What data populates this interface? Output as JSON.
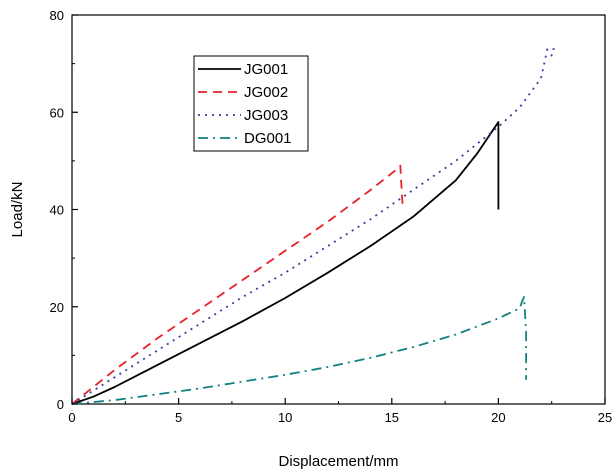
{
  "chart_data": {
    "type": "line",
    "title": "",
    "xlabel": "Displacement/mm",
    "ylabel": "Load/kN",
    "xlim": [
      0,
      25
    ],
    "ylim": [
      0,
      80
    ],
    "xticks": [
      "0",
      "5",
      "10",
      "15",
      "20",
      "25"
    ],
    "yticks": [
      "0",
      "20",
      "40",
      "60",
      "80"
    ],
    "grid": false,
    "legend": "top-left",
    "series": [
      {
        "name": "JG001",
        "color": "#000000",
        "dash": "solid",
        "x": [
          0,
          1,
          2,
          4,
          6,
          8,
          10,
          12,
          14,
          16,
          18,
          19,
          20,
          20
        ],
        "y": [
          0,
          1.5,
          3.5,
          8,
          12.5,
          17,
          21.8,
          27,
          32.5,
          38.5,
          46,
          51.5,
          58,
          40
        ]
      },
      {
        "name": "JG002",
        "color": "#e8202a",
        "dash": "dashed",
        "x": [
          0,
          2,
          4,
          6,
          8,
          10,
          12,
          14,
          15.3,
          15.4,
          15.5
        ],
        "y": [
          0,
          7,
          13.5,
          19.5,
          25.5,
          31.5,
          37.5,
          44,
          48.5,
          49,
          41
        ]
      },
      {
        "name": "JG003",
        "color": "#3a3f9b",
        "dash": "dotted",
        "x": [
          0,
          2,
          4,
          6,
          8,
          10,
          12,
          14,
          16,
          18,
          20,
          21,
          22,
          22.3,
          22.6,
          22.4
        ],
        "y": [
          0,
          5.5,
          11,
          16.5,
          22,
          27,
          32.5,
          38,
          44,
          50,
          57,
          61,
          67,
          73,
          73,
          70.5
        ]
      },
      {
        "name": "DG001",
        "color": "#118080",
        "dash": "dashdot",
        "x": [
          0,
          2,
          4,
          6,
          8,
          10,
          12,
          14,
          16,
          18,
          20,
          21,
          21.1,
          21.2,
          21.3,
          21.3
        ],
        "y": [
          0,
          0.8,
          2,
          3.2,
          4.6,
          6,
          7.6,
          9.5,
          11.7,
          14.3,
          17.6,
          19.7,
          21,
          22,
          15,
          5
        ]
      }
    ]
  }
}
